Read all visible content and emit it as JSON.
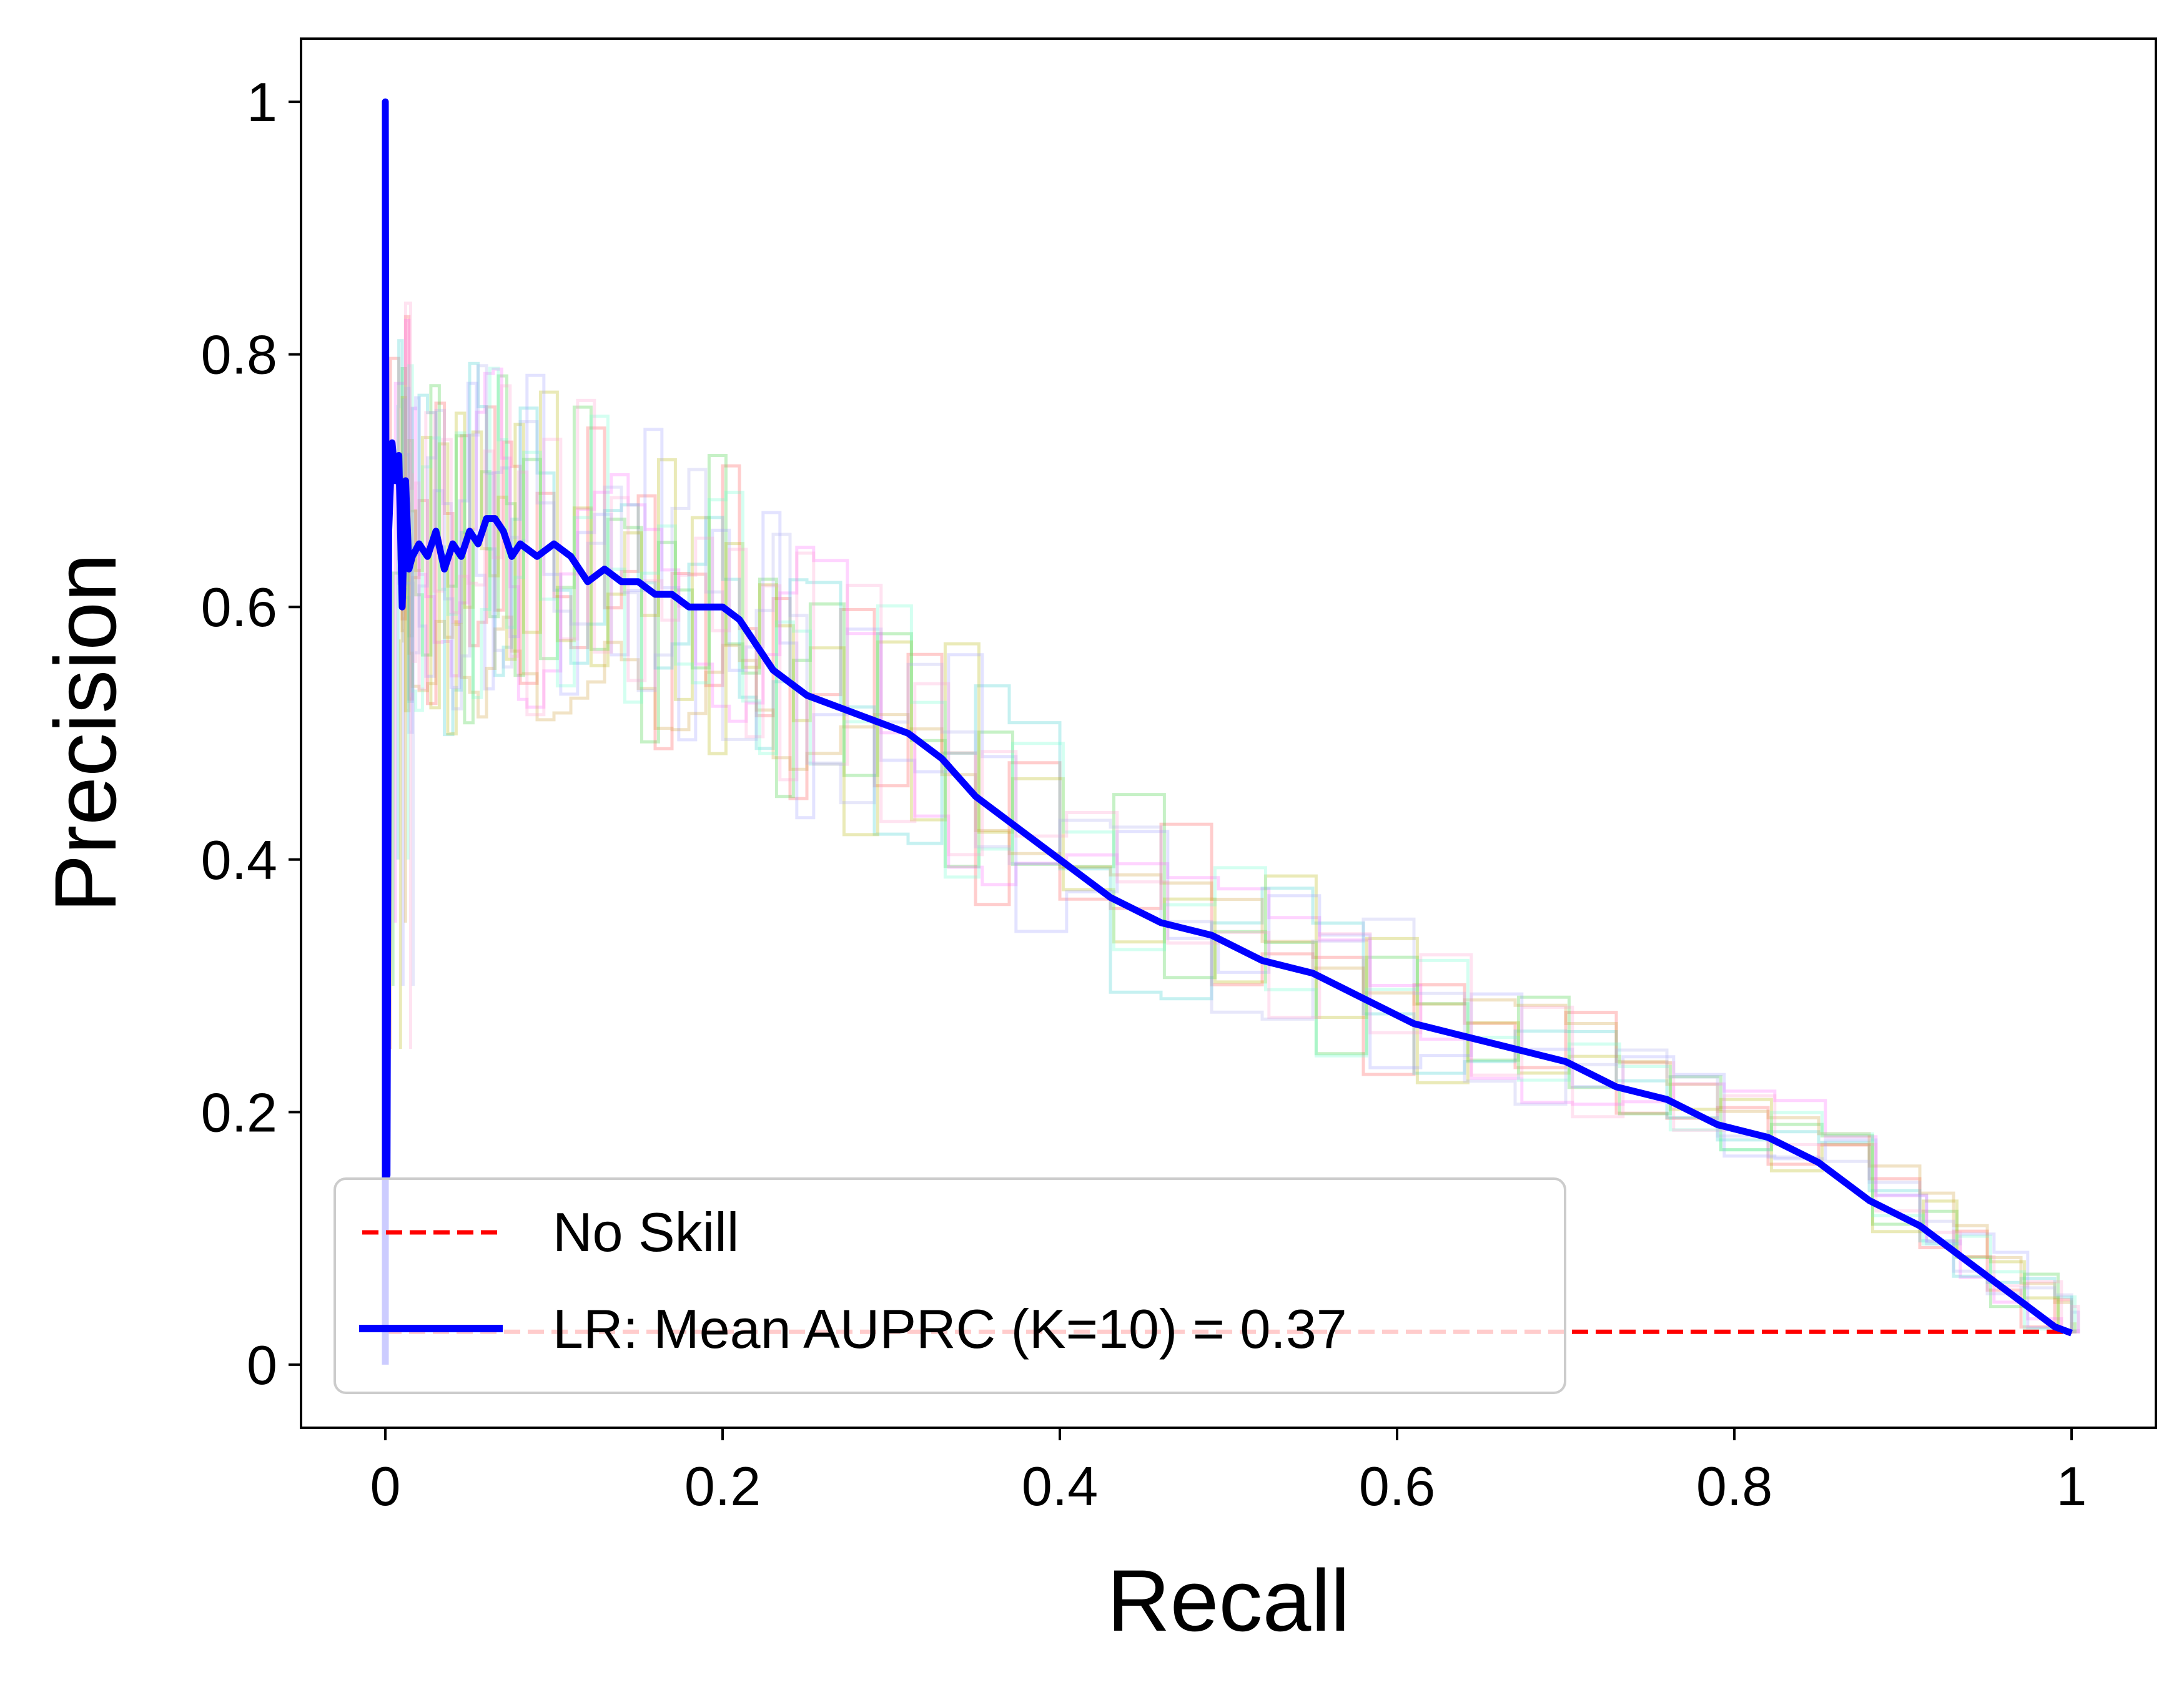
{
  "chart_data": {
    "type": "line",
    "xlabel": "Recall",
    "ylabel": "Precision",
    "xlim": [
      -0.05,
      1.05
    ],
    "ylim": [
      -0.05,
      1.05
    ],
    "x_ticks": [
      0,
      0.2,
      0.4,
      0.6,
      0.8,
      1
    ],
    "x_tick_labels": [
      "0",
      "0.2",
      "0.4",
      "0.6",
      "0.8",
      "1"
    ],
    "y_ticks": [
      0,
      0.2,
      0.4,
      0.6,
      0.8,
      1
    ],
    "y_tick_labels": [
      "0",
      "0.2",
      "0.4",
      "0.6",
      "0.8",
      "1"
    ],
    "grid": false,
    "legend_position": "lower-left",
    "series": [
      {
        "name": "No Skill",
        "color": "#ff0000",
        "style": "dashed",
        "x": [
          0,
          1
        ],
        "y": [
          0.026,
          0.026
        ]
      },
      {
        "name": "LR: Mean AUPRC (K=10) = 0.37",
        "color": "#0000ff",
        "style": "solid",
        "x": [
          0,
          0,
          0.001,
          0.002,
          0.004,
          0.006,
          0.008,
          0.01,
          0.012,
          0.014,
          0.016,
          0.02,
          0.025,
          0.03,
          0.035,
          0.04,
          0.045,
          0.05,
          0.055,
          0.06,
          0.065,
          0.07,
          0.075,
          0.08,
          0.09,
          0.1,
          0.11,
          0.12,
          0.13,
          0.14,
          0.15,
          0.16,
          0.17,
          0.18,
          0.19,
          0.2,
          0.21,
          0.22,
          0.23,
          0.24,
          0.25,
          0.27,
          0.29,
          0.31,
          0.33,
          0.35,
          0.37,
          0.4,
          0.43,
          0.46,
          0.49,
          0.52,
          0.55,
          0.58,
          0.61,
          0.64,
          0.67,
          0.7,
          0.73,
          0.76,
          0.79,
          0.82,
          0.85,
          0.88,
          0.91,
          0.93,
          0.95,
          0.97,
          0.99,
          1.0
        ],
        "y": [
          0,
          1.0,
          0.15,
          0.66,
          0.73,
          0.7,
          0.72,
          0.6,
          0.7,
          0.63,
          0.64,
          0.65,
          0.64,
          0.66,
          0.63,
          0.65,
          0.64,
          0.66,
          0.65,
          0.67,
          0.67,
          0.66,
          0.64,
          0.65,
          0.64,
          0.65,
          0.64,
          0.62,
          0.63,
          0.62,
          0.62,
          0.61,
          0.61,
          0.6,
          0.6,
          0.6,
          0.59,
          0.57,
          0.55,
          0.54,
          0.53,
          0.52,
          0.51,
          0.5,
          0.48,
          0.45,
          0.43,
          0.4,
          0.37,
          0.35,
          0.34,
          0.32,
          0.31,
          0.29,
          0.27,
          0.26,
          0.25,
          0.24,
          0.22,
          0.21,
          0.19,
          0.18,
          0.16,
          0.13,
          0.11,
          0.09,
          0.07,
          0.05,
          0.03,
          0.025
        ]
      }
    ]
  }
}
